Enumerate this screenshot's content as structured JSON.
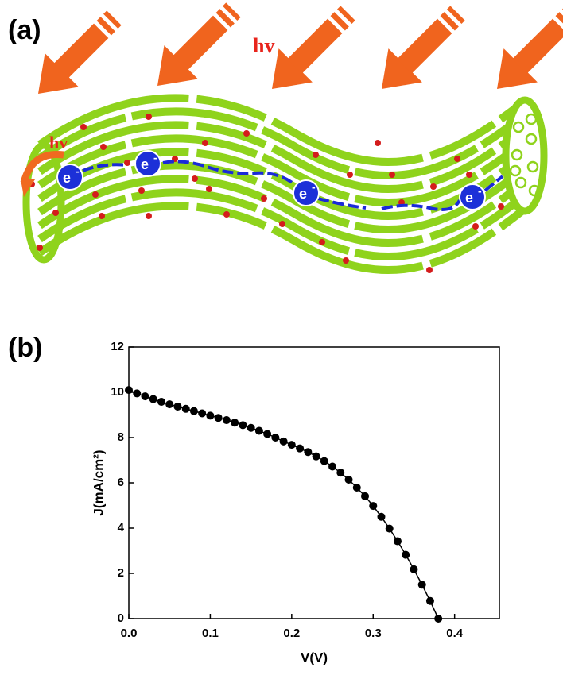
{
  "panel_a": {
    "label": "(a)",
    "light_label": "hv",
    "absorb_label": "hv",
    "electrons": [
      {
        "symbol": "e",
        "charge": "-"
      },
      {
        "symbol": "e",
        "charge": "-"
      },
      {
        "symbol": "e",
        "charge": "-"
      },
      {
        "symbol": "e",
        "charge": "-"
      }
    ]
  },
  "chart_data": {
    "type": "scatter",
    "panel_label": "(b)",
    "x_label": "V(V)",
    "y_label": "J(mA/cm²)",
    "x": [
      0,
      0.01,
      0.02,
      0.03,
      0.04,
      0.05,
      0.06,
      0.07,
      0.08,
      0.09,
      0.1,
      0.11,
      0.12,
      0.13,
      0.14,
      0.15,
      0.16,
      0.17,
      0.18,
      0.19,
      0.2,
      0.21,
      0.22,
      0.23,
      0.24,
      0.25,
      0.26,
      0.27,
      0.28,
      0.29,
      0.3,
      0.31,
      0.32,
      0.33,
      0.34,
      0.35,
      0.36,
      0.37,
      0.38
    ],
    "values": [
      10.1,
      9.95,
      9.82,
      9.7,
      9.58,
      9.47,
      9.37,
      9.27,
      9.17,
      9.07,
      8.97,
      8.87,
      8.77,
      8.66,
      8.55,
      8.43,
      8.3,
      8.16,
      8.0,
      7.83,
      7.68,
      7.52,
      7.36,
      7.17,
      6.96,
      6.72,
      6.45,
      6.14,
      5.79,
      5.41,
      4.98,
      4.5,
      3.98,
      3.42,
      2.82,
      2.18,
      1.5,
      0.78,
      0
    ],
    "color": "#000000",
    "xlim": [
      0,
      0.455
    ],
    "ylim": [
      0,
      12
    ],
    "xticks": [
      {
        "value": 0,
        "label": "0.0"
      },
      {
        "value": 0.1,
        "label": "0.1"
      },
      {
        "value": 0.2,
        "label": "0.2"
      },
      {
        "value": 0.3,
        "label": "0.3"
      },
      {
        "value": 0.4,
        "label": "0.4"
      }
    ],
    "yticks": [
      0,
      2,
      4,
      6,
      8,
      10,
      12
    ],
    "grid": false
  }
}
